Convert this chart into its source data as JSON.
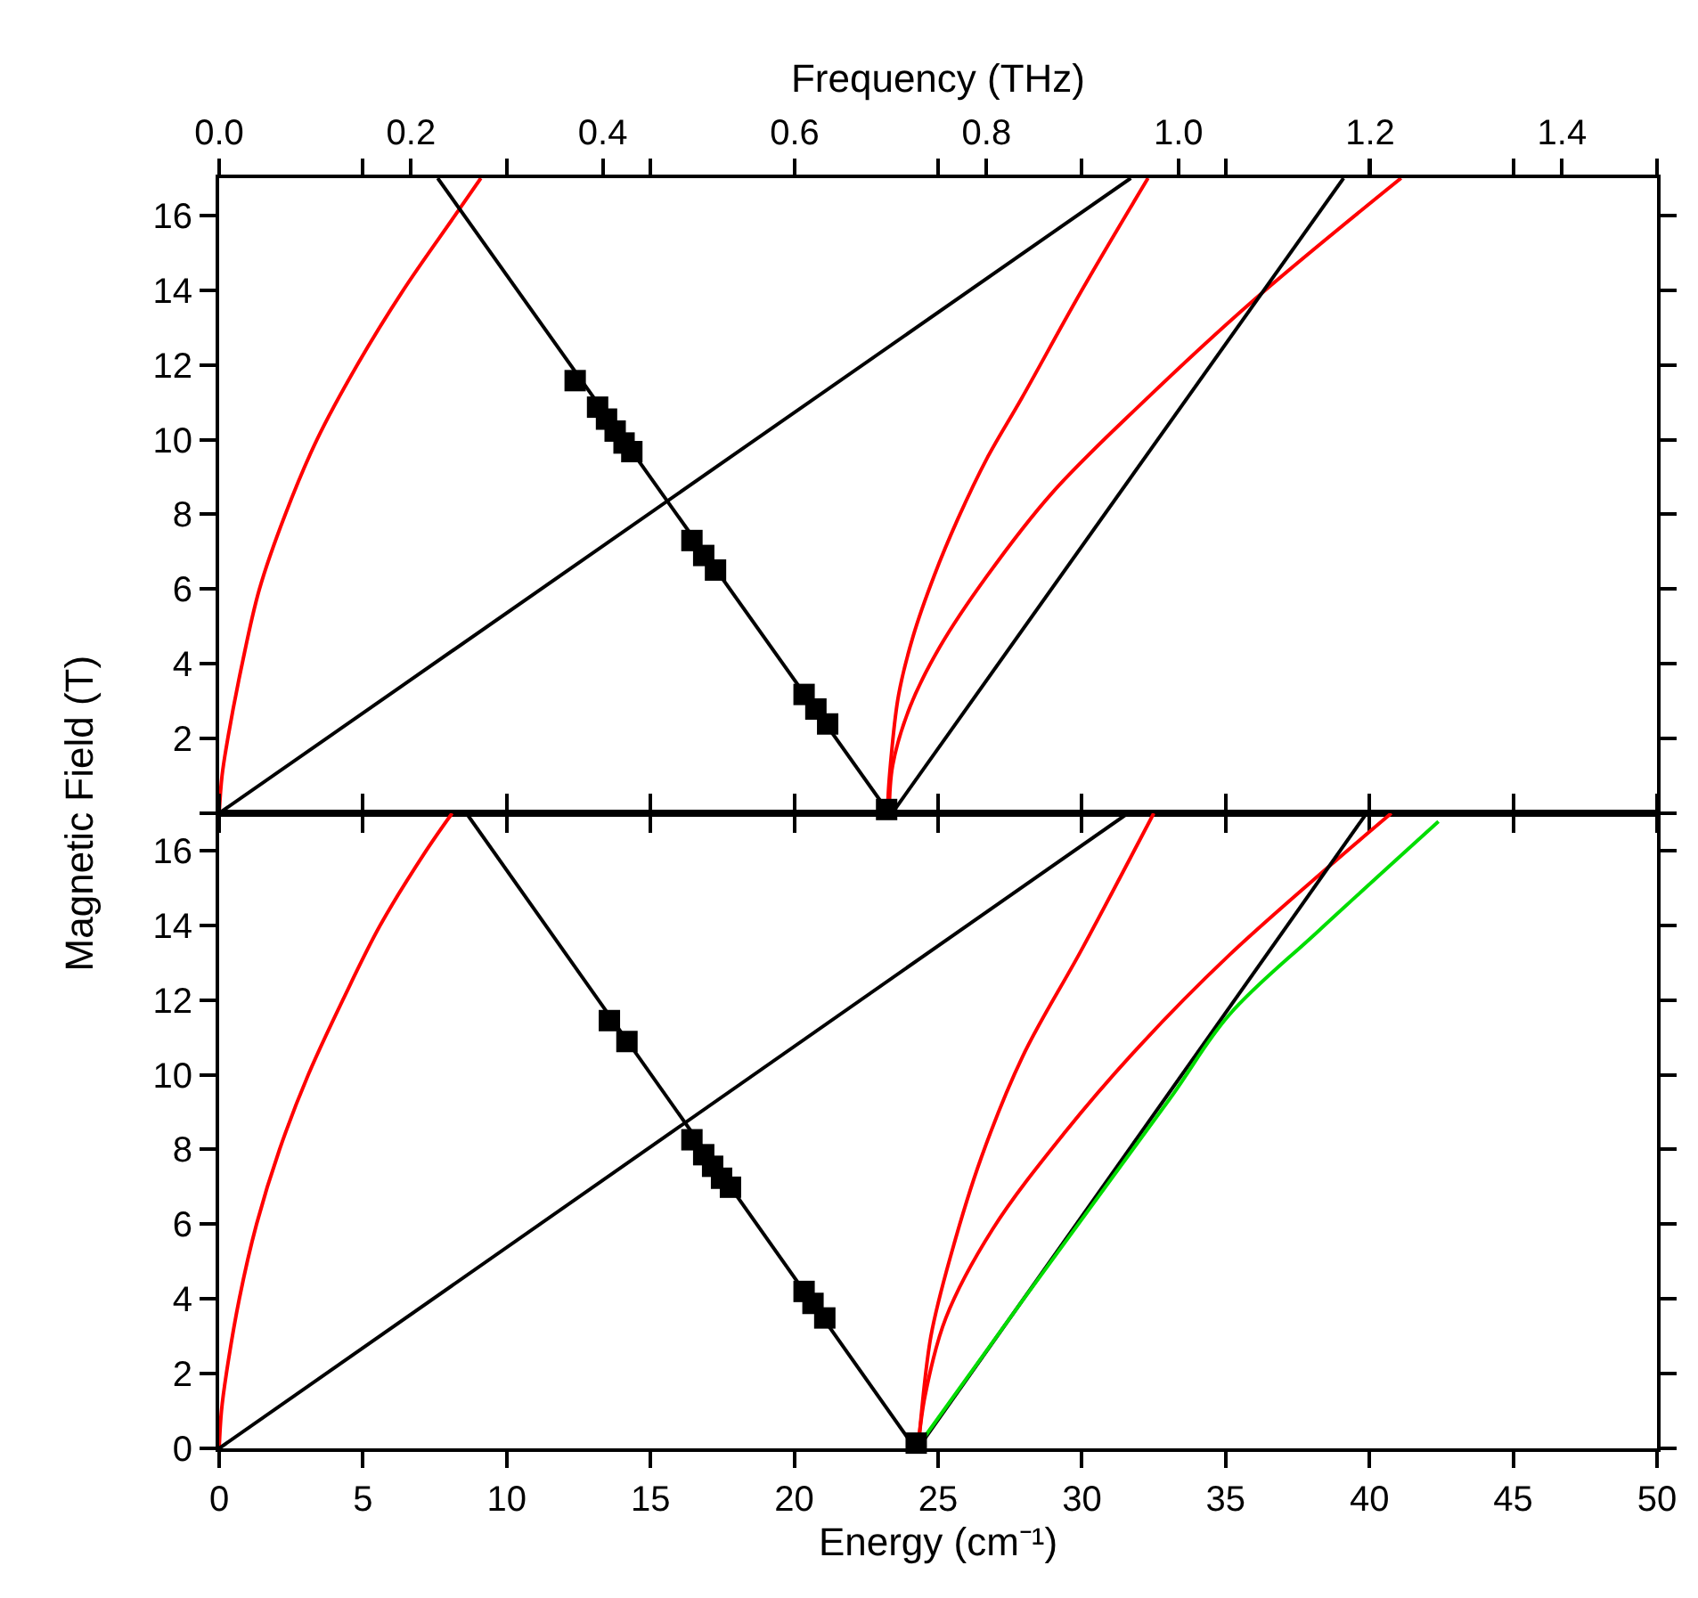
{
  "chart_data": [
    {
      "type": "line",
      "x2label": "Frequency (THz)",
      "ylabel": "Magnetic Field (T)",
      "xlim": [
        0,
        50
      ],
      "xticks": [
        0,
        5,
        10,
        15,
        20,
        25,
        30,
        35,
        40,
        45,
        50
      ],
      "x2lim": [
        0,
        1.499
      ],
      "x2ticks": [
        {
          "value": 0,
          "label": "0.0"
        },
        0.2,
        0.4,
        0.6,
        0.8,
        {
          "value": 1,
          "label": "1.0"
        },
        1.2,
        1.4
      ],
      "ylim": [
        0,
        17
      ],
      "yticks": [
        {
          "value": 0,
          "label": null
        },
        2,
        4,
        6,
        8,
        10,
        12,
        14,
        16
      ],
      "tick_labels": "y",
      "line_style": "solid",
      "marker": "none",
      "series": [
        {
          "color": "#ff0000",
          "x": [
            0,
            0.1,
            0.3,
            0.8,
            1.4,
            2.3,
            3.4,
            4.8,
            6.4,
            8.2,
            9.1
          ],
          "values": [
            0,
            1,
            2,
            4,
            6,
            8,
            10,
            12,
            14,
            16,
            17
          ]
        },
        {
          "color": "#000000",
          "x": [
            23.3,
            7.6
          ],
          "values": [
            0,
            17
          ]
        },
        {
          "color": "#000000",
          "x": [
            0,
            31.7
          ],
          "values": [
            0,
            17
          ]
        },
        {
          "color": "#ff0000",
          "x": [
            23.3,
            23.26,
            23.38,
            23.63,
            24.14,
            24.86,
            25.7,
            26.7,
            27.9,
            30.0,
            32.3
          ],
          "values": [
            0,
            0.25,
            1.6,
            3.18,
            4.76,
            6.35,
            7.9,
            9.5,
            11.1,
            14.0,
            17
          ]
        },
        {
          "color": "#ff0000",
          "x": [
            23.3,
            23.42,
            24.03,
            25.06,
            26.7,
            28.96,
            32.04,
            35.94,
            41.1
          ],
          "values": [
            0,
            1.28,
            2.86,
            4.45,
            6.35,
            8.57,
            10.94,
            13.71,
            17
          ]
        },
        {
          "color": "#000000",
          "x": [
            23.4,
            39.1
          ],
          "values": [
            0,
            17
          ]
        },
        {
          "type": "scatter",
          "marker": "square",
          "color": "#000000",
          "x": [
            12.38,
            13.16,
            13.47,
            13.77,
            14.08,
            14.35,
            16.44,
            16.85,
            17.26,
            20.34,
            20.75,
            21.16,
            23.21
          ],
          "values": [
            11.58,
            10.87,
            10.55,
            10.23,
            9.91,
            9.68,
            7.3,
            6.9,
            6.51,
            3.18,
            2.79,
            2.39,
            0.1
          ]
        }
      ]
    },
    {
      "type": "line",
      "xlabel": "Energy (cm⁻¹)",
      "xlim": [
        0,
        50
      ],
      "xticks": [
        0,
        5,
        10,
        15,
        20,
        25,
        30,
        35,
        40,
        45,
        50
      ],
      "ylim": [
        0,
        17
      ],
      "yticks": [
        0,
        2,
        4,
        6,
        8,
        10,
        12,
        14,
        16
      ],
      "line_style": "solid",
      "marker": "none",
      "series": [
        {
          "color": "#ff0000",
          "x": [
            0,
            0.08,
            0.25,
            0.7,
            1.3,
            2.1,
            3.1,
            4.3,
            5.6,
            7.2,
            8.1
          ],
          "values": [
            0,
            1,
            2,
            4,
            6,
            8,
            10,
            12,
            14,
            16,
            17
          ]
        },
        {
          "color": "#000000",
          "x": [
            24.2,
            8.6
          ],
          "values": [
            0,
            17
          ]
        },
        {
          "color": "#000000",
          "x": [
            0,
            31.6
          ],
          "values": [
            0,
            17
          ]
        },
        {
          "color": "#ff0000",
          "x": [
            24.3,
            24.34,
            24.75,
            25.47,
            26.5,
            27.94,
            30.0,
            32.5
          ],
          "values": [
            0,
            0.3,
            3.0,
            5.24,
            7.78,
            10.49,
            13.36,
            17
          ]
        },
        {
          "color": "#ff0000",
          "x": [
            24.3,
            24.55,
            25.27,
            26.9,
            29.37,
            32.04,
            35.12,
            38.6,
            40.76
          ],
          "values": [
            0,
            1.42,
            3.49,
            5.87,
            8.42,
            10.8,
            13.2,
            15.58,
            17
          ]
        },
        {
          "color": "#000000",
          "x": [
            24.3,
            39.9
          ],
          "values": [
            0,
            17
          ]
        },
        {
          "color": "#00dd00",
          "x": [
            24.45,
            27.94,
            33.07,
            35.12,
            38.2,
            42.4
          ],
          "values": [
            0.22,
            3.96,
            9.37,
            11.6,
            13.83,
            16.78
          ]
        },
        {
          "type": "scatter",
          "marker": "square",
          "color": "#000000",
          "x": [
            13.57,
            14.18,
            16.44,
            16.85,
            17.16,
            17.47,
            17.78,
            20.34,
            20.65,
            21.06,
            24.24
          ],
          "values": [
            11.45,
            10.89,
            8.26,
            7.86,
            7.55,
            7.23,
            6.99,
            4.2,
            3.88,
            3.49,
            0.14
          ]
        }
      ]
    }
  ]
}
